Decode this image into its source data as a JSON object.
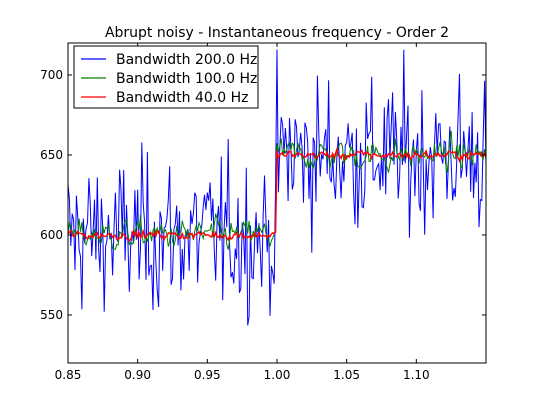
{
  "chart_data": {
    "type": "line",
    "title": "Abrupt noisy - Instantaneous frequency - Order 2",
    "xlabel": "",
    "ylabel": "",
    "xlim": [
      0.85,
      1.15
    ],
    "ylim": [
      520,
      720
    ],
    "x_ticks": [
      "0.85",
      "0.90",
      "0.95",
      "1.00",
      "1.05",
      "1.10"
    ],
    "y_ticks": [
      "550",
      "600",
      "650",
      "700"
    ],
    "grid": false,
    "legend_position": "upper-left",
    "step_time": 1.0,
    "change_time": 1.0,
    "level_before": 600,
    "level_after": 650,
    "sample_count": 300,
    "series": [
      {
        "name": "Bandwidth 200.0 Hz",
        "color": "#0000ff",
        "noise_amplitude": 45
      },
      {
        "name": "Bandwidth 100.0 Hz",
        "color": "#008000",
        "noise_amplitude": 14
      },
      {
        "name": "Bandwidth 40.0 Hz",
        "color": "#ff0000",
        "noise_amplitude": 4
      }
    ]
  }
}
